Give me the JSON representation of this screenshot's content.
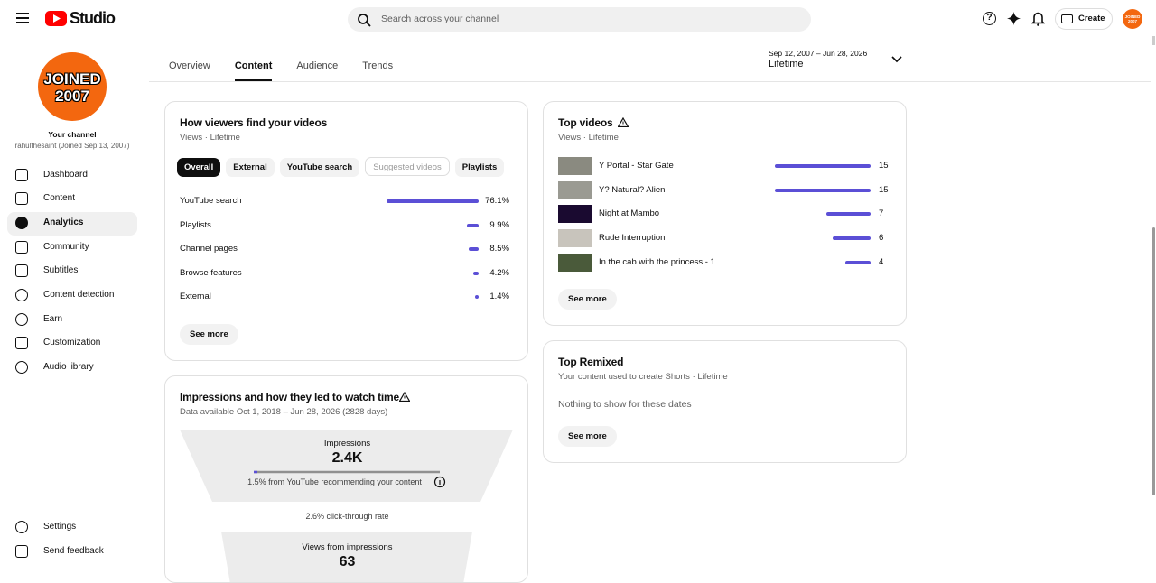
{
  "header": {
    "logo": "Studio",
    "search_placeholder": "Search across your channel",
    "create": "Create",
    "avatar_text": "JOINED 2007"
  },
  "sidebar": {
    "avatar_lines": [
      "JOINED",
      "2007"
    ],
    "channel_label": "Your channel",
    "channel_name": "rahulthesaint (Joined Sep 13, 2007)",
    "nav": [
      {
        "label": "Dashboard"
      },
      {
        "label": "Content"
      },
      {
        "label": "Analytics",
        "selected": true
      },
      {
        "label": "Community"
      },
      {
        "label": "Subtitles"
      },
      {
        "label": "Content detection"
      },
      {
        "label": "Earn"
      },
      {
        "label": "Customization"
      },
      {
        "label": "Audio library"
      }
    ],
    "footer_nav": [
      "Settings",
      "Send feedback"
    ]
  },
  "tabs": [
    {
      "label": "Overview"
    },
    {
      "label": "Content",
      "selected": true
    },
    {
      "label": "Audience"
    },
    {
      "label": "Trends"
    }
  ],
  "date_range": {
    "range": "Sep 12, 2007 – Jun 28, 2026",
    "label": "Lifetime"
  },
  "traffic_card": {
    "title": "How viewers find your videos",
    "subtitle": "Views · Lifetime",
    "chips": [
      {
        "label": "Overall",
        "selected": true
      },
      {
        "label": "External"
      },
      {
        "label": "YouTube search"
      },
      {
        "label": "Suggested videos",
        "disabled": true
      },
      {
        "label": "Playlists"
      }
    ],
    "rows": [
      {
        "name": "YouTube search",
        "value": 76.1,
        "label": "76.1%"
      },
      {
        "name": "Playlists",
        "value": 9.9,
        "label": "9.9%"
      },
      {
        "name": "Channel pages",
        "value": 8.5,
        "label": "8.5%"
      },
      {
        "name": "Browse features",
        "value": 4.2,
        "label": "4.2%"
      },
      {
        "name": "External",
        "value": 1.4,
        "label": "1.4%"
      }
    ],
    "see_more": "See more"
  },
  "top_videos": {
    "title": "Top videos",
    "subtitle": "Views · Lifetime",
    "videos": [
      {
        "title": "Y Portal - Star Gate",
        "views": 15
      },
      {
        "title": "Y? Natural? Alien",
        "views": 15
      },
      {
        "title": "Night at Mambo",
        "views": 7
      },
      {
        "title": "Rude Interruption",
        "views": 6
      },
      {
        "title": "In the cab with the princess - 1",
        "views": 4
      }
    ],
    "see_more": "See more"
  },
  "top_remixed": {
    "title": "Top Remixed",
    "subtitle": "Your content used to create Shorts · Lifetime",
    "empty": "Nothing to show for these dates",
    "see_more": "See more"
  },
  "impressions": {
    "title": "Impressions and how they led to watch time",
    "subtitle": "Data available Oct 1, 2018 – Jun 28, 2026 (2828 days)",
    "impressions_label": "Impressions",
    "impressions_value": "2.4K",
    "recommend": "1.5% from YouTube recommending your content",
    "ctr": "2.6% click-through rate",
    "views_label": "Views from impressions",
    "views_value": "63"
  }
}
